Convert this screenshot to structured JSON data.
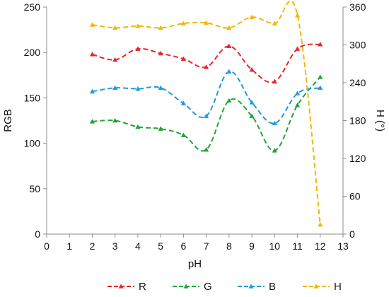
{
  "chart_data": {
    "type": "line",
    "x": [
      2,
      3,
      4,
      5,
      6,
      7,
      8,
      9,
      10,
      11,
      12
    ],
    "xlabel": "pH",
    "ylabel": "RGB",
    "y2label": "H (°)",
    "xlim": [
      0,
      13
    ],
    "ylim": [
      0,
      250
    ],
    "y2lim": [
      0,
      360
    ],
    "xticks": [
      "0",
      "1",
      "2",
      "3",
      "4",
      "5",
      "6",
      "7",
      "8",
      "9",
      "10",
      "11",
      "12",
      "13"
    ],
    "yticks": [
      "0",
      "50",
      "100",
      "150",
      "200",
      "250"
    ],
    "y2ticks": [
      "0",
      "60",
      "120",
      "180",
      "240",
      "300",
      "360"
    ],
    "grid": false,
    "legend_position": "bottom",
    "series": [
      {
        "name": "R",
        "axis": "left",
        "color": "#e8262a",
        "values": [
          198,
          192,
          204,
          199,
          193,
          184,
          207,
          181,
          168,
          204,
          209
        ]
      },
      {
        "name": "G",
        "axis": "left",
        "color": "#22a33a",
        "values": [
          124,
          125,
          118,
          116,
          109,
          93,
          147,
          130,
          92,
          142,
          173
        ]
      },
      {
        "name": "B",
        "axis": "left",
        "color": "#1f9bd9",
        "values": [
          157,
          161,
          160,
          161,
          144,
          130,
          179,
          145,
          122,
          155,
          161
        ]
      },
      {
        "name": "H",
        "axis": "right",
        "color": "#f2b705",
        "values": [
          332,
          327,
          330,
          327,
          334,
          335,
          327,
          344,
          334,
          347,
          15
        ]
      }
    ]
  }
}
